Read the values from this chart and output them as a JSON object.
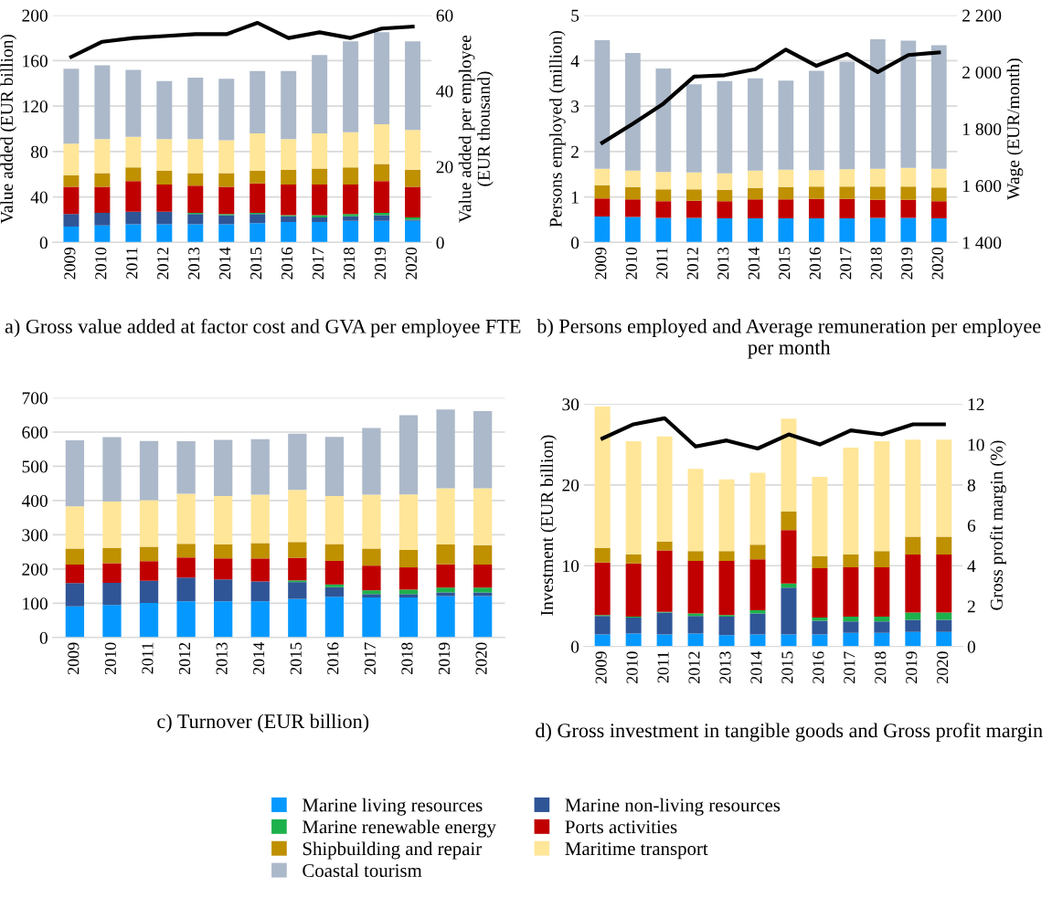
{
  "chart_data": [
    {
      "type": "bar",
      "stacked": true,
      "title": "a) Gross value added at factor cost and GVA per employee FTE",
      "ylabel": "Value added (EUR billion)",
      "y2label": "Value added per employee\n(EUR thousand)",
      "categories": [
        "2009",
        "2010",
        "2011",
        "2012",
        "2013",
        "2014",
        "2015",
        "2016",
        "2017",
        "2018",
        "2019",
        "2020"
      ],
      "ylim": [
        0,
        200
      ],
      "yticks": [
        0,
        40,
        80,
        120,
        160,
        200
      ],
      "y2lim": [
        0,
        60
      ],
      "y2ticks": [
        0,
        20,
        40,
        60
      ],
      "grid": "y",
      "legend": "bottom",
      "series": [
        {
          "name": "Marine living resources",
          "color": "#0599ff",
          "values": [
            14,
            15,
            16,
            16,
            16,
            16,
            17,
            18,
            18,
            19,
            19,
            19
          ]
        },
        {
          "name": "Marine non-living resources",
          "color": "#2f5597",
          "values": [
            11,
            11,
            11,
            11,
            9,
            8,
            8,
            5,
            4,
            4,
            5,
            1
          ]
        },
        {
          "name": "Marine renewable energy",
          "color": "#1db14b",
          "values": [
            null,
            null,
            null,
            null,
            1,
            1,
            1,
            1,
            2,
            2,
            2,
            2
          ]
        },
        {
          "name": "Ports activities",
          "color": "#c00000",
          "values": [
            24,
            23,
            27,
            24,
            24,
            24,
            26,
            27,
            27,
            26,
            28,
            27
          ]
        },
        {
          "name": "Shipbuilding and repair",
          "color": "#bf9000",
          "values": [
            10,
            12,
            12,
            12,
            11,
            12,
            11,
            13,
            14,
            15,
            15,
            15
          ]
        },
        {
          "name": "Maritime transport",
          "color": "#ffe699",
          "values": [
            28,
            30,
            27,
            28,
            30,
            29,
            33,
            27,
            31,
            31,
            35,
            35
          ]
        },
        {
          "name": "Coastal tourism",
          "color": "#acb9ca",
          "values": [
            66,
            65,
            59,
            51,
            54,
            54,
            55,
            60,
            69,
            80,
            81,
            78
          ]
        },
        {
          "type": "line",
          "axis": "y2",
          "color": "#000000",
          "marker": "none",
          "line_style": "solid",
          "values": [
            49,
            53,
            54,
            54.5,
            55,
            55,
            58,
            54,
            55.5,
            54,
            56.5,
            57
          ]
        }
      ]
    },
    {
      "type": "bar",
      "stacked": true,
      "title": "b) Persons employed and Average remuneration per employee per month",
      "ylabel": "Persons employed (million)",
      "y2label": "Wage (EUR/month)",
      "categories": [
        "2009",
        "2010",
        "2011",
        "2012",
        "2013",
        "2014",
        "2015",
        "2016",
        "2017",
        "2018",
        "2019",
        "2020"
      ],
      "ylim": [
        0,
        5
      ],
      "yticks": [
        0,
        1,
        2,
        3,
        4,
        5
      ],
      "y2lim": [
        1400,
        2200
      ],
      "y2ticks": [
        {
          "value": 1400,
          "label": "1 400"
        },
        {
          "value": 1600,
          "label": "1 600"
        },
        {
          "value": 1800,
          "label": "1 800"
        },
        {
          "value": 2000,
          "label": "2 000"
        },
        {
          "value": 2200,
          "label": "2 200"
        }
      ],
      "grid": "y",
      "series": [
        {
          "color": "#0599ff",
          "values": [
            0.57,
            0.56,
            0.54,
            0.54,
            0.53,
            0.53,
            0.53,
            0.53,
            0.53,
            0.54,
            0.54,
            0.53
          ]
        },
        {
          "color": "#c00000",
          "values": [
            0.4,
            0.39,
            0.37,
            0.38,
            0.38,
            0.42,
            0.42,
            0.43,
            0.43,
            0.4,
            0.4,
            0.38
          ]
        },
        {
          "color": "#bf9000",
          "values": [
            0.29,
            0.27,
            0.26,
            0.25,
            0.25,
            0.25,
            0.27,
            0.27,
            0.27,
            0.29,
            0.29,
            0.3
          ]
        },
        {
          "color": "#ffe699",
          "values": [
            0.36,
            0.36,
            0.38,
            0.37,
            0.36,
            0.38,
            0.38,
            0.36,
            0.38,
            0.39,
            0.41,
            0.41
          ]
        },
        {
          "color": "#acb9ca",
          "values": [
            2.83,
            2.59,
            2.28,
            1.94,
            2.03,
            2.03,
            1.96,
            2.19,
            2.37,
            2.85,
            2.8,
            2.72
          ]
        },
        {
          "type": "line",
          "axis": "y2",
          "color": "#000000",
          "marker": "none",
          "line_style": "solid",
          "values": [
            1751,
            1818,
            1889,
            1984,
            1989,
            2010,
            2079,
            2022,
            2064,
            2000,
            2060,
            2069
          ]
        }
      ]
    },
    {
      "type": "bar",
      "stacked": true,
      "title": "c) Turnover (EUR billion)",
      "categories": [
        "2009",
        "2010",
        "2011",
        "2012",
        "2013",
        "2014",
        "2015",
        "2016",
        "2017",
        "2018",
        "2019",
        "2020"
      ],
      "ylim": [
        0,
        700
      ],
      "yticks": [
        0,
        100,
        200,
        300,
        400,
        500,
        600,
        700
      ],
      "grid": "y",
      "series": [
        {
          "color": "#0599ff",
          "values": [
            91,
            95,
            101,
            106,
            106,
            106,
            113,
            119,
            117,
            117,
            121,
            121
          ]
        },
        {
          "color": "#2f5597",
          "values": [
            68,
            65,
            65,
            69,
            64,
            58,
            49,
            28,
            10,
            10,
            11,
            11
          ]
        },
        {
          "color": "#1db14b",
          "values": [
            null,
            null,
            null,
            null,
            null,
            null,
            5,
            8,
            11,
            13,
            14,
            14
          ]
        },
        {
          "color": "#c00000",
          "values": [
            54,
            57,
            57,
            59,
            61,
            67,
            66,
            69,
            72,
            65,
            68,
            67
          ]
        },
        {
          "color": "#bf9000",
          "values": [
            47,
            44,
            42,
            40,
            41,
            45,
            46,
            49,
            50,
            51,
            58,
            57
          ]
        },
        {
          "color": "#ffe699",
          "values": [
            123,
            136,
            136,
            146,
            141,
            141,
            152,
            140,
            157,
            162,
            164,
            166
          ]
        },
        {
          "color": "#acb9ca",
          "values": [
            193,
            188,
            173,
            153,
            164,
            162,
            164,
            173,
            195,
            231,
            230,
            225
          ]
        }
      ]
    },
    {
      "type": "bar",
      "stacked": true,
      "title": "d) Gross investment in tangible goods and Gross profit margin",
      "ylabel": "Investment (EUR billion)",
      "y2label": "Gross profit margin (%)",
      "categories": [
        "2009",
        "2010",
        "2011",
        "2012",
        "2013",
        "2014",
        "2015",
        "2016",
        "2017",
        "2018",
        "2019",
        "2020"
      ],
      "ylim": [
        0,
        30
      ],
      "yticks": [
        0,
        10,
        20,
        30
      ],
      "y2lim": [
        0,
        12
      ],
      "y2ticks": [
        0,
        2,
        4,
        6,
        8,
        10,
        12
      ],
      "grid": "y",
      "series": [
        {
          "color": "#0599ff",
          "values": [
            1.5,
            1.6,
            1.5,
            1.6,
            1.4,
            1.5,
            1.5,
            1.5,
            1.7,
            1.7,
            1.8,
            1.8
          ]
        },
        {
          "color": "#2f5597",
          "values": [
            2.3,
            2,
            2.7,
            2.2,
            2.3,
            2.6,
            5.8,
            1.7,
            1.4,
            1.4,
            1.5,
            1.5
          ]
        },
        {
          "color": "#1db14b",
          "values": [
            0.1,
            0.1,
            0.1,
            0.3,
            0.2,
            0.4,
            0.5,
            0.4,
            0.6,
            0.6,
            0.9,
            0.9
          ]
        },
        {
          "color": "#c00000",
          "values": [
            6.5,
            6.6,
            7.6,
            6.5,
            6.7,
            6.3,
            6.6,
            6.1,
            6.1,
            6.1,
            7.2,
            7.2
          ]
        },
        {
          "color": "#bf9000",
          "values": [
            1.8,
            1.1,
            1.1,
            1.2,
            1.2,
            1.8,
            2.3,
            1.5,
            1.6,
            2,
            2.2,
            2.2
          ]
        },
        {
          "color": "#ffe699",
          "values": [
            17.5,
            14,
            13,
            10.2,
            8.9,
            8.9,
            11.5,
            9.8,
            13.2,
            13.6,
            12,
            12
          ]
        },
        {
          "type": "line",
          "axis": "y2",
          "color": "#000000",
          "marker": "none",
          "line_style": "solid",
          "values": [
            10.3,
            11,
            11.3,
            9.9,
            10.2,
            9.8,
            10.5,
            10,
            10.7,
            10.5,
            11,
            11
          ]
        }
      ]
    }
  ]
}
